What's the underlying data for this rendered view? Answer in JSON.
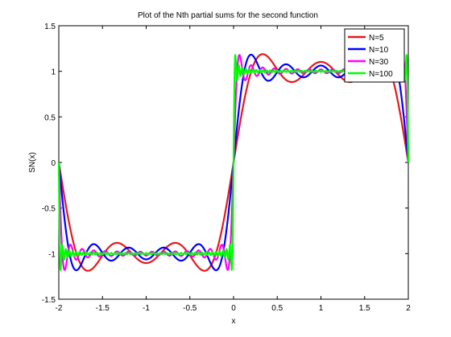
{
  "chart_data": {
    "type": "line",
    "title": "Plot of the Nth partial sums for the second function",
    "xlabel": "x",
    "ylabel": "SN(x)",
    "xlim": [
      -2,
      2
    ],
    "ylim": [
      -1.5,
      1.5
    ],
    "xticks": [
      -2,
      -1.5,
      -1,
      -0.5,
      0,
      0.5,
      1,
      1.5,
      2
    ],
    "xtick_labels": [
      "-2",
      "-1.5",
      "-1",
      "-0.5",
      "0",
      "0.5",
      "1",
      "1.5",
      "2"
    ],
    "yticks": [
      -1.5,
      -1,
      -0.5,
      0,
      0.5,
      1,
      1.5
    ],
    "ytick_labels": [
      "-1.5",
      "-1",
      "-0.5",
      "0",
      "0.5",
      "1",
      "1.5"
    ],
    "grid": false,
    "legend_position": "top-right",
    "function": "square wave: -1 for -2 < x < 0, +1 for 0 < x < 2, period 4; Fourier partial sums SN(x) = sum over odd n <= N of (4/(n*pi)) sin(n*pi*x/2)",
    "series": [
      {
        "name": "N=5",
        "N": 5,
        "color": "#e41a1c"
      },
      {
        "name": "N=10",
        "N": 10,
        "color": "#0000ff"
      },
      {
        "name": "N=30",
        "N": 30,
        "color": "#ff00ff"
      },
      {
        "name": "N=100",
        "N": 100,
        "color": "#00ff00"
      }
    ]
  }
}
